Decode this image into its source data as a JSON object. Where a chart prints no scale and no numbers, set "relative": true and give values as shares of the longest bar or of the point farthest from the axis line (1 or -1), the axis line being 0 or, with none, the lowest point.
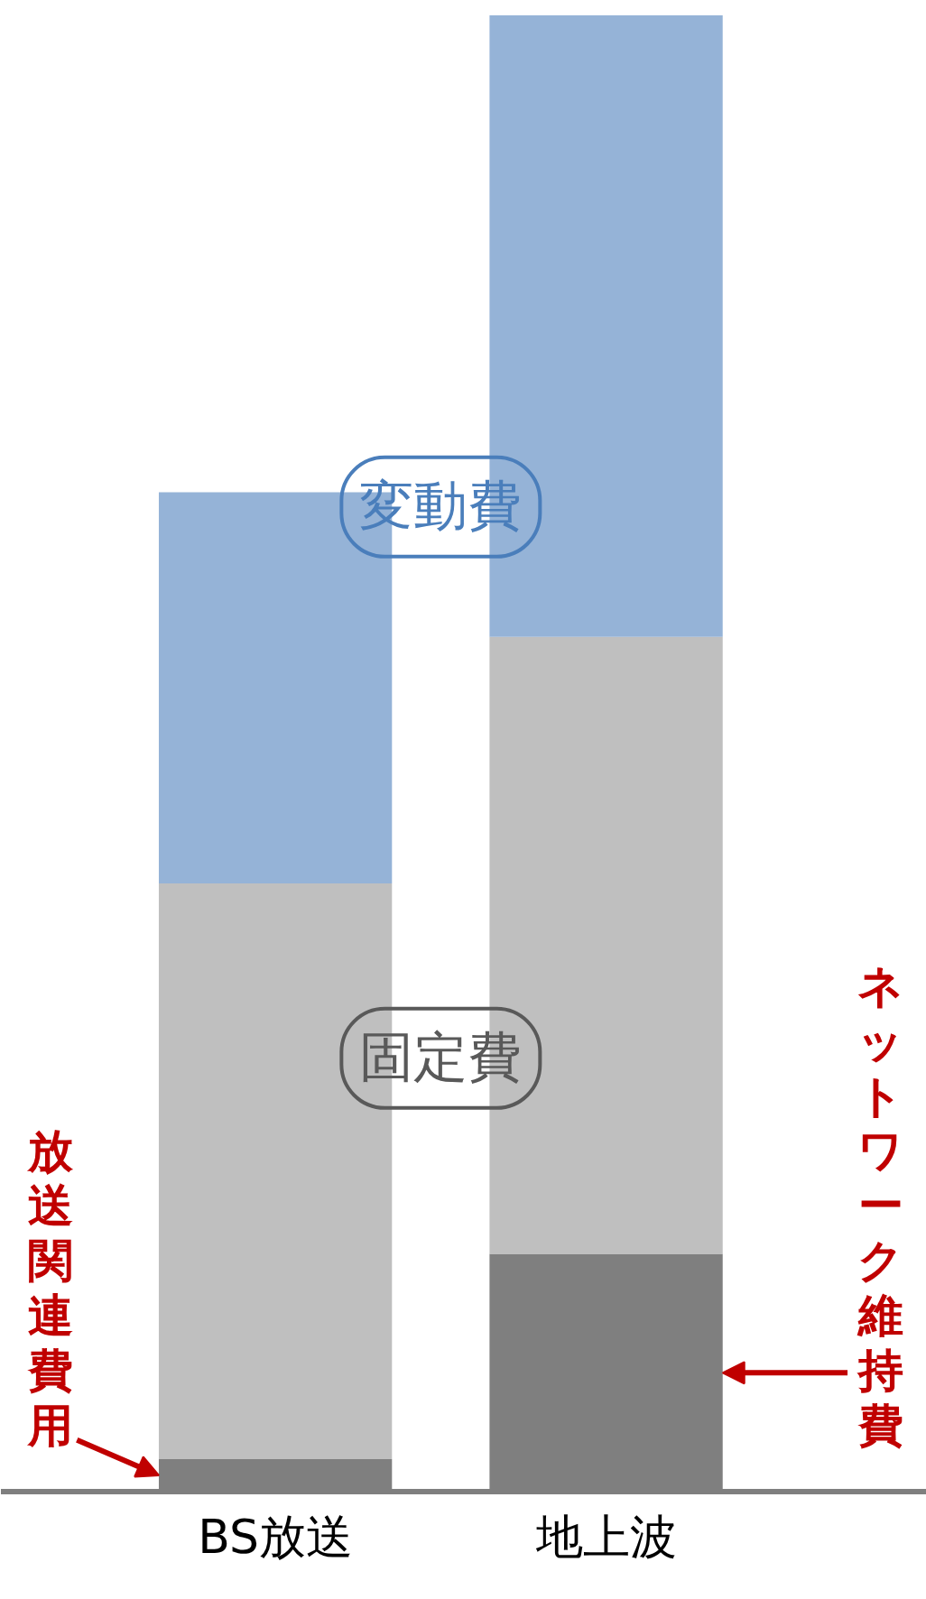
{
  "chart_data": {
    "type": "bar",
    "stacked": true,
    "relative": true,
    "categories": [
      "BS放送",
      "地上波"
    ],
    "series": [
      {
        "color": "#7f7f7f",
        "values": [
          0.022,
          0.161
        ]
      },
      {
        "name": "固定費",
        "color": "#bfbfbf",
        "values": [
          0.39,
          0.418
        ]
      },
      {
        "name": "変動費",
        "color": "#95b3d7",
        "values": [
          0.265,
          0.421
        ]
      }
    ],
    "annotations": [
      "放送関連費用",
      "ネットワーク維持費"
    ],
    "grid": false
  }
}
